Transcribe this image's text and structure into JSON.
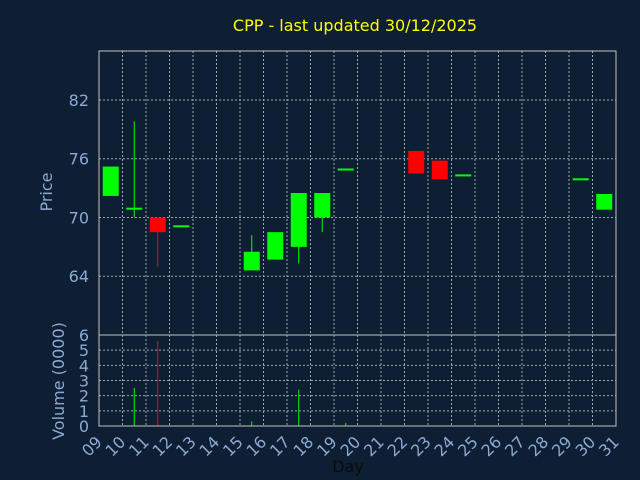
{
  "chart_data": {
    "type": "candlestick",
    "title": "CPP - last updated 30/12/2025",
    "xlabel": "Day",
    "ylabel": "Price",
    "volume_label": "Volume (0000)",
    "x_ticks": [
      "09",
      "10",
      "11",
      "12",
      "13",
      "14",
      "15",
      "16",
      "17",
      "18",
      "19",
      "20",
      "21",
      "22",
      "23",
      "24",
      "25",
      "26",
      "27",
      "28",
      "29",
      "30",
      "31"
    ],
    "price_ticks": [
      64,
      70,
      76,
      82
    ],
    "price_range": [
      58,
      87
    ],
    "volume_ticks": [
      0,
      1,
      2,
      3,
      4,
      5,
      6
    ],
    "volume_range": [
      0,
      6
    ],
    "grid": true,
    "colors": {
      "background": "#0f1f33",
      "title": "#ffff00",
      "axis_text": "#8aaad4",
      "up": "#00ff00",
      "down": "#ff0000",
      "frame": "#c0c0c0",
      "grid": "#9aa6b4"
    },
    "candles": [
      {
        "day": "09",
        "open": 72.2,
        "close": 75.2,
        "high": 75.2,
        "low": 72.2,
        "direction": "up"
      },
      {
        "day": "10",
        "open": 70.8,
        "close": 71.0,
        "high": 79.8,
        "low": 70.0,
        "direction": "up"
      },
      {
        "day": "11",
        "open": 70.0,
        "close": 68.5,
        "high": 70.0,
        "low": 65.0,
        "direction": "down"
      },
      {
        "day": "12",
        "open": 69.0,
        "close": 69.2,
        "high": 69.2,
        "low": 69.0,
        "direction": "up"
      },
      {
        "day": "15",
        "open": 64.6,
        "close": 66.5,
        "high": 68.2,
        "low": 64.6,
        "direction": "up"
      },
      {
        "day": "16",
        "open": 65.7,
        "close": 68.5,
        "high": 68.5,
        "low": 65.7,
        "direction": "up"
      },
      {
        "day": "17",
        "open": 67.0,
        "close": 72.5,
        "high": 72.5,
        "low": 65.3,
        "direction": "up"
      },
      {
        "day": "18",
        "open": 70.0,
        "close": 72.5,
        "high": 72.5,
        "low": 68.5,
        "direction": "up"
      },
      {
        "day": "19",
        "open": 74.8,
        "close": 75.0,
        "high": 75.0,
        "low": 74.8,
        "direction": "up"
      },
      {
        "day": "22",
        "open": 76.8,
        "close": 74.5,
        "high": 76.8,
        "low": 74.5,
        "direction": "down"
      },
      {
        "day": "23",
        "open": 75.8,
        "close": 73.9,
        "high": 75.8,
        "low": 73.9,
        "direction": "down"
      },
      {
        "day": "24",
        "open": 74.2,
        "close": 74.4,
        "high": 74.4,
        "low": 74.2,
        "direction": "up"
      },
      {
        "day": "29",
        "open": 73.8,
        "close": 74.0,
        "high": 74.0,
        "low": 73.8,
        "direction": "up"
      },
      {
        "day": "30",
        "open": 70.8,
        "close": 72.4,
        "high": 72.4,
        "low": 70.8,
        "direction": "up"
      }
    ],
    "volume": [
      {
        "day": "10",
        "value": 2.5,
        "direction": "up"
      },
      {
        "day": "11",
        "value": 5.6,
        "direction": "down"
      },
      {
        "day": "15",
        "value": 0.3,
        "direction": "up"
      },
      {
        "day": "17",
        "value": 2.4,
        "direction": "up"
      },
      {
        "day": "19",
        "value": 0.2,
        "direction": "up"
      }
    ]
  }
}
